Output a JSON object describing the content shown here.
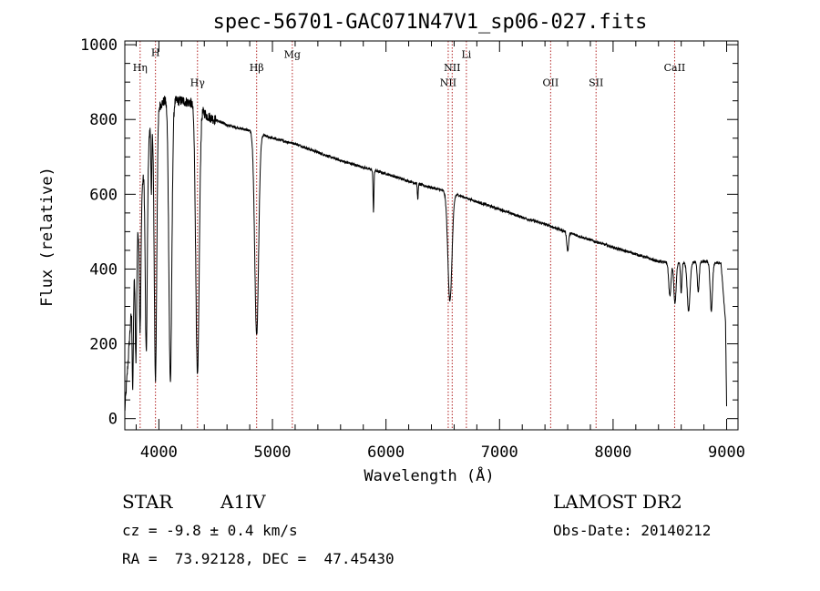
{
  "chart_data": {
    "type": "line",
    "title": "spec-56701-GAC071N47V1_sp06-027.fits",
    "xlabel": "Wavelength (Å)",
    "ylabel": "Flux (relative)",
    "xlim": [
      3700,
      9100
    ],
    "ylim": [
      -30,
      1010
    ],
    "xticks": [
      4000,
      5000,
      6000,
      7000,
      8000,
      9000
    ],
    "yticks": [
      0,
      200,
      400,
      600,
      800,
      1000
    ],
    "grid": false,
    "continuum": [
      [
        3700,
        20
      ],
      [
        3760,
        300
      ],
      [
        3820,
        520
      ],
      [
        3880,
        700
      ],
      [
        3950,
        820
      ],
      [
        4050,
        850
      ],
      [
        4200,
        850
      ],
      [
        4350,
        840
      ],
      [
        4420,
        810
      ],
      [
        4600,
        785
      ],
      [
        4800,
        770
      ],
      [
        5000,
        750
      ],
      [
        5200,
        735
      ],
      [
        5400,
        712
      ],
      [
        5600,
        690
      ],
      [
        5800,
        672
      ],
      [
        6000,
        655
      ],
      [
        6200,
        635
      ],
      [
        6400,
        618
      ],
      [
        6600,
        602
      ],
      [
        6800,
        580
      ],
      [
        7000,
        560
      ],
      [
        7200,
        538
      ],
      [
        7400,
        520
      ],
      [
        7600,
        498
      ],
      [
        7800,
        478
      ],
      [
        8000,
        458
      ],
      [
        8200,
        440
      ],
      [
        8400,
        420
      ],
      [
        8600,
        415
      ],
      [
        8800,
        420
      ],
      [
        8950,
        415
      ],
      [
        8990,
        260
      ],
      [
        9000,
        30
      ]
    ],
    "absorption_features": [
      {
        "x": 3770,
        "depth": 260,
        "width": 5
      },
      {
        "x": 3798,
        "depth": 280,
        "width": 6
      },
      {
        "x": 3835,
        "depth": 330,
        "width": 7
      },
      {
        "x": 3889,
        "depth": 540,
        "width": 9
      },
      {
        "x": 3934,
        "depth": 200,
        "width": 4
      },
      {
        "x": 3970,
        "depth": 720,
        "width": 11
      },
      {
        "x": 4101,
        "depth": 750,
        "width": 13
      },
      {
        "x": 4340,
        "depth": 730,
        "width": 15
      },
      {
        "x": 4861,
        "depth": 540,
        "width": 17
      },
      {
        "x": 5890,
        "depth": 110,
        "width": 4
      },
      {
        "x": 6280,
        "depth": 40,
        "width": 4
      },
      {
        "x": 6563,
        "depth": 290,
        "width": 18
      },
      {
        "x": 7600,
        "depth": 50,
        "width": 8
      },
      {
        "x": 8500,
        "depth": 90,
        "width": 10
      },
      {
        "x": 8545,
        "depth": 110,
        "width": 10
      },
      {
        "x": 8600,
        "depth": 80,
        "width": 6
      },
      {
        "x": 8665,
        "depth": 130,
        "width": 12
      },
      {
        "x": 8750,
        "depth": 80,
        "width": 8
      },
      {
        "x": 8865,
        "depth": 130,
        "width": 10
      }
    ],
    "reference_lines": [
      {
        "label": "Hη",
        "x": 3835,
        "y": 930
      },
      {
        "label": "H",
        "x": 3970,
        "y": 970
      },
      {
        "label": "Hγ",
        "x": 4340,
        "y": 890
      },
      {
        "label": "Hβ",
        "x": 4861,
        "y": 930
      },
      {
        "label": "Mg",
        "x": 5175,
        "y": 965
      },
      {
        "label": "NII",
        "x": 6548,
        "y": 890
      },
      {
        "label": "NII",
        "x": 6583,
        "y": 930
      },
      {
        "label": "Li",
        "x": 6708,
        "y": 965
      },
      {
        "label": "OII",
        "x": 7450,
        "y": 890
      },
      {
        "label": "SII",
        "x": 7850,
        "y": 890
      },
      {
        "label": "CaII",
        "x": 8542,
        "y": 930
      }
    ],
    "colors": {
      "spectrum": "#000000",
      "reference": "#b22222",
      "axes": "#000000"
    }
  },
  "info": {
    "object_type": "STAR",
    "spectral_class": "A1IV",
    "survey": "LAMOST DR2",
    "redshift": "cz = -9.8 ± 0.4 km/s",
    "obs_date": "Obs-Date: 20140212",
    "coords": "RA =  73.92128, DEC =  47.45430"
  }
}
